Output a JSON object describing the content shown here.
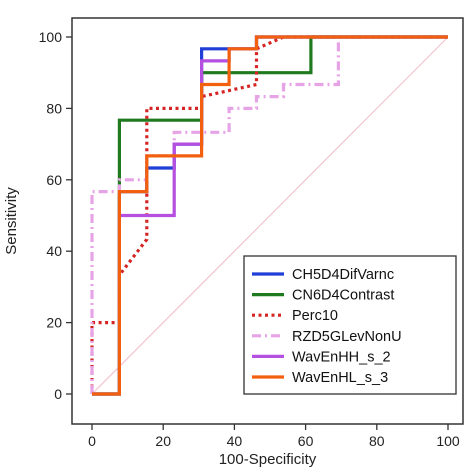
{
  "chart_data": {
    "type": "line",
    "xlabel": "100-Specificity",
    "ylabel": "Sensitivity",
    "xlim": [
      0,
      100
    ],
    "ylim": [
      0,
      100
    ],
    "xticks": [
      0,
      20,
      40,
      60,
      80,
      100
    ],
    "yticks": [
      0,
      20,
      40,
      60,
      80,
      100
    ],
    "x_tick_labels": [
      "0",
      "20",
      "40",
      "60",
      "80",
      "100"
    ],
    "y_tick_labels": [
      "0",
      "20",
      "40",
      "60",
      "80",
      "100"
    ],
    "grid": false,
    "legend_position": "bottom-right",
    "reference_line": {
      "from": [
        0,
        0
      ],
      "to": [
        100,
        100
      ],
      "color": "#f2c4cc"
    },
    "series": [
      {
        "name": "CH5D4DifVarnc",
        "color": "#1f3fd6",
        "dash": "solid",
        "points": [
          [
            0,
            0
          ],
          [
            7.7,
            0
          ],
          [
            7.7,
            56.7
          ],
          [
            15.4,
            56.7
          ],
          [
            15.4,
            63.3
          ],
          [
            23.1,
            63.3
          ],
          [
            23.1,
            70
          ],
          [
            30.8,
            70
          ],
          [
            30.8,
            96.7
          ],
          [
            38.5,
            96.7
          ],
          [
            46.2,
            96.7
          ],
          [
            46.2,
            100
          ],
          [
            100,
            100
          ]
        ]
      },
      {
        "name": "CN6D4Contrast",
        "color": "#1f7a1f",
        "dash": "solid",
        "points": [
          [
            0,
            0
          ],
          [
            7.7,
            0
          ],
          [
            7.7,
            76.7
          ],
          [
            30.8,
            76.7
          ],
          [
            30.8,
            90
          ],
          [
            61.5,
            90
          ],
          [
            61.5,
            100
          ],
          [
            100,
            100
          ]
        ]
      },
      {
        "name": "Perc10",
        "color": "#d42424",
        "dash": "dot",
        "points": [
          [
            0,
            0
          ],
          [
            0,
            20
          ],
          [
            7.7,
            20
          ],
          [
            7.7,
            33.3
          ],
          [
            15.4,
            43.3
          ],
          [
            15.4,
            80
          ],
          [
            30.8,
            80
          ],
          [
            30.8,
            83.3
          ],
          [
            46.2,
            86.7
          ],
          [
            46.2,
            96.7
          ],
          [
            53.8,
            100
          ],
          [
            100,
            100
          ]
        ]
      },
      {
        "name": "RZD5GLevNonU",
        "color": "#e6a3e6",
        "dash": "dashdot",
        "points": [
          [
            0,
            0
          ],
          [
            0,
            56.7
          ],
          [
            7.7,
            56.7
          ],
          [
            7.7,
            60
          ],
          [
            15.4,
            60
          ],
          [
            15.4,
            66.7
          ],
          [
            23.1,
            66.7
          ],
          [
            23.1,
            73.3
          ],
          [
            38.5,
            73.3
          ],
          [
            38.5,
            80
          ],
          [
            46.2,
            80
          ],
          [
            46.2,
            83.3
          ],
          [
            53.8,
            83.3
          ],
          [
            53.8,
            86.7
          ],
          [
            69.2,
            86.7
          ],
          [
            69.2,
            100
          ],
          [
            100,
            100
          ]
        ]
      },
      {
        "name": "WavEnHH_s_2",
        "color": "#b44fe0",
        "dash": "solid",
        "points": [
          [
            0,
            0
          ],
          [
            7.7,
            0
          ],
          [
            7.7,
            50
          ],
          [
            15.4,
            50
          ],
          [
            15.4,
            50
          ],
          [
            23.1,
            50
          ],
          [
            23.1,
            70
          ],
          [
            30.8,
            70
          ],
          [
            30.8,
            93.3
          ],
          [
            38.5,
            93.3
          ],
          [
            38.5,
            96.7
          ],
          [
            46.2,
            96.7
          ],
          [
            46.2,
            100
          ],
          [
            100,
            100
          ]
        ]
      },
      {
        "name": "WavEnHL_s_3",
        "color": "#f2600f",
        "dash": "solid",
        "points": [
          [
            0,
            0
          ],
          [
            7.7,
            0
          ],
          [
            7.7,
            56.7
          ],
          [
            15.4,
            56.7
          ],
          [
            15.4,
            66.7
          ],
          [
            30.8,
            66.7
          ],
          [
            30.8,
            86.7
          ],
          [
            38.5,
            86.7
          ],
          [
            38.5,
            96.7
          ],
          [
            46.2,
            96.7
          ],
          [
            46.2,
            100
          ],
          [
            100,
            100
          ]
        ]
      }
    ]
  }
}
